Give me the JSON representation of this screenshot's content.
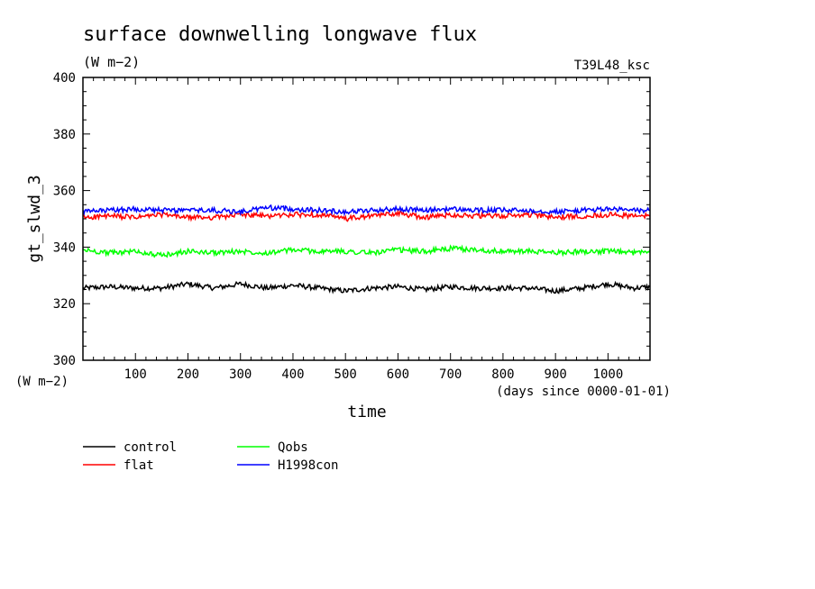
{
  "chart_data": {
    "type": "line",
    "title": "surface downwelling longwave flux",
    "units_label": "(W m−2)",
    "run_label": "T39L48_ksc",
    "ylabel": "gt_slwd_3",
    "yunit_label": "(W m−2)",
    "xlabel": "time",
    "xunit_label": "(days since 0000-01-01)",
    "xlim": [
      0,
      1080
    ],
    "ylim": [
      300,
      400
    ],
    "xticks": [
      100,
      200,
      300,
      400,
      500,
      600,
      700,
      800,
      900,
      1000
    ],
    "yticks": [
      300,
      320,
      340,
      360,
      380,
      400
    ],
    "grid": false,
    "legend_position": "bottom-left",
    "series": [
      {
        "name": "control",
        "color": "#000000",
        "x": [
          0,
          50,
          100,
          150,
          200,
          250,
          300,
          350,
          400,
          450,
          500,
          550,
          600,
          650,
          700,
          750,
          800,
          850,
          900,
          950,
          1000,
          1050,
          1080
        ],
        "values": [
          325.5,
          326,
          325.5,
          325.5,
          327,
          325.5,
          327,
          325.5,
          326.5,
          325.5,
          324.5,
          325.5,
          326,
          325,
          326,
          325.5,
          325.5,
          325.5,
          324.5,
          325.5,
          327,
          325.5,
          326
        ]
      },
      {
        "name": "flat",
        "color": "#ff0000",
        "x": [
          0,
          50,
          100,
          150,
          200,
          250,
          300,
          350,
          400,
          450,
          500,
          550,
          600,
          650,
          700,
          750,
          800,
          850,
          900,
          950,
          1000,
          1050,
          1080
        ],
        "values": [
          350.5,
          351,
          350.5,
          351.5,
          350.5,
          350.5,
          351.5,
          351,
          351.5,
          351.5,
          350,
          351,
          352,
          350.5,
          351.5,
          351,
          351,
          351.5,
          350.5,
          351,
          351.5,
          351,
          351
        ]
      },
      {
        "name": "Qobs",
        "color": "#00ff00",
        "x": [
          0,
          50,
          100,
          150,
          200,
          250,
          300,
          350,
          400,
          450,
          500,
          550,
          600,
          650,
          700,
          750,
          800,
          850,
          900,
          950,
          1000,
          1050,
          1080
        ],
        "values": [
          339,
          338,
          338.5,
          337,
          338.5,
          338,
          338.5,
          338,
          339,
          338.5,
          338.5,
          338,
          339,
          338.5,
          339.5,
          339,
          338.5,
          338.5,
          338,
          338.5,
          338.5,
          338,
          339
        ]
      },
      {
        "name": "H1998con",
        "color": "#0000ff",
        "x": [
          0,
          50,
          100,
          150,
          200,
          250,
          300,
          350,
          400,
          450,
          500,
          550,
          600,
          650,
          700,
          750,
          800,
          850,
          900,
          950,
          1000,
          1050,
          1080
        ],
        "values": [
          352.5,
          353,
          353.5,
          353,
          353,
          353,
          352.5,
          354,
          353.5,
          353,
          352.5,
          353,
          353.5,
          353,
          353.5,
          353,
          353,
          353,
          352.5,
          353,
          353.5,
          353,
          353
        ]
      }
    ]
  }
}
